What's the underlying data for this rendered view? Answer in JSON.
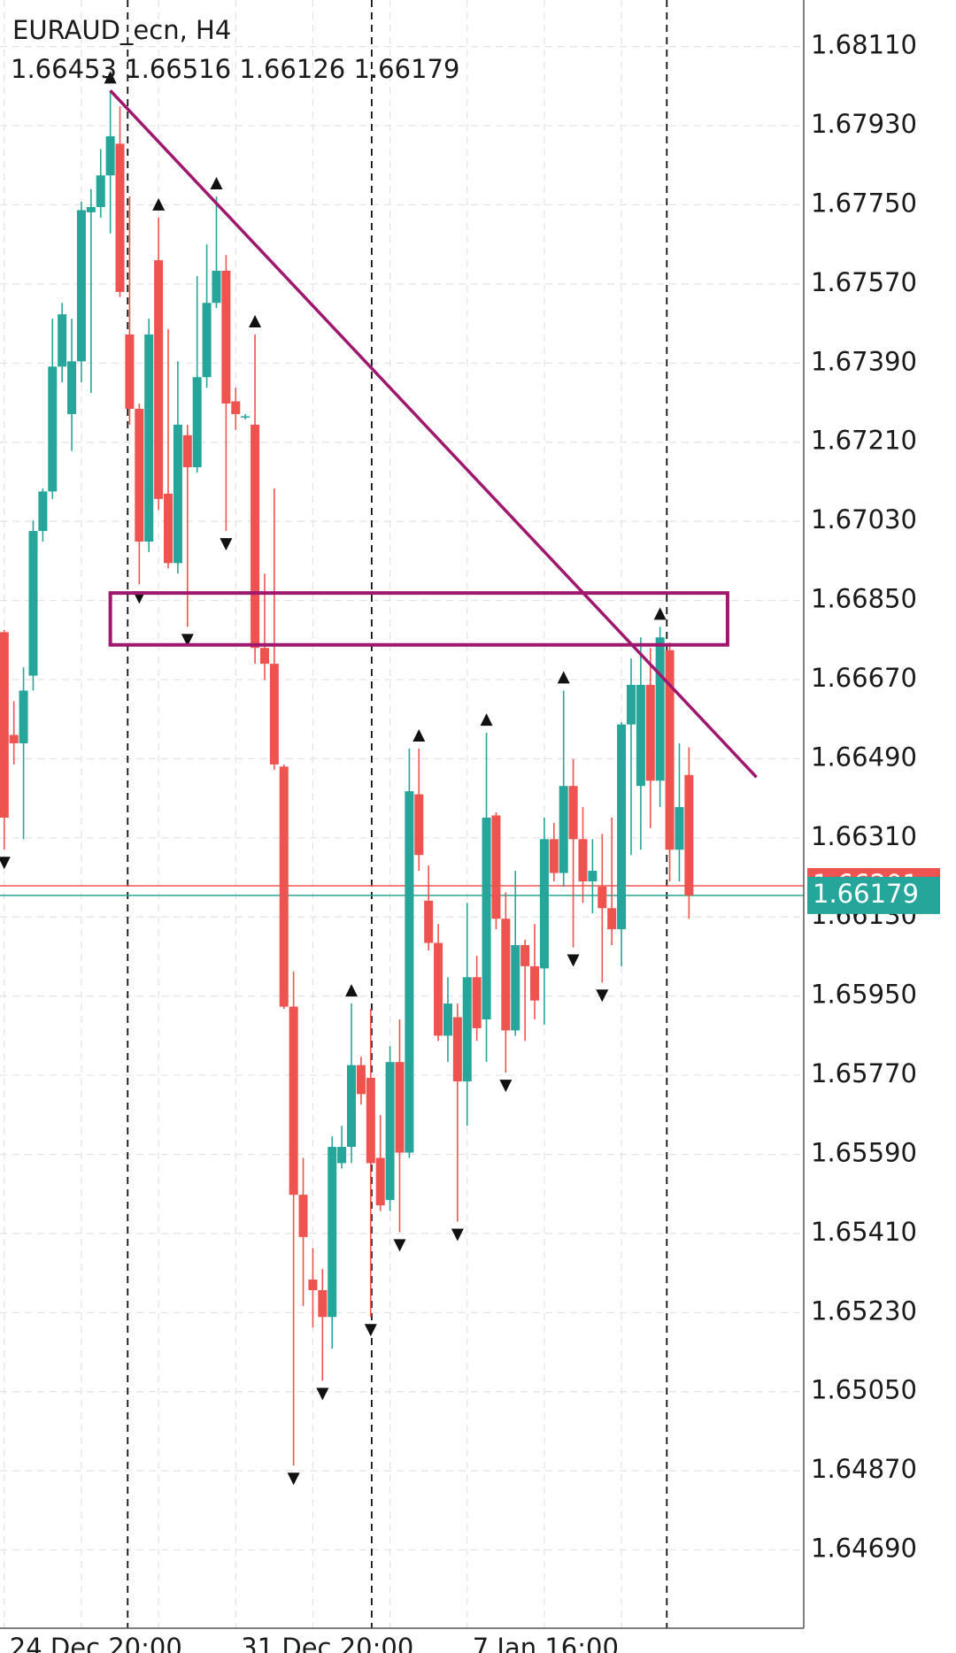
{
  "chart_data": {
    "type": "candlestick",
    "title": "EURAUD_ecn, H4",
    "categories": [
      "24 Dec 20:00",
      null,
      null,
      null,
      null,
      null,
      null,
      null,
      null,
      null,
      null,
      null,
      null,
      null,
      null,
      null,
      null,
      null,
      null,
      null,
      null,
      null,
      null,
      null,
      "31 Dec 20:00",
      null,
      null,
      null,
      null,
      null,
      null,
      null,
      null,
      null,
      null,
      null,
      null,
      null,
      null,
      null,
      null,
      null,
      null,
      null,
      null,
      null,
      null,
      null,
      "7 Jan 16:00",
      null,
      null,
      null,
      null,
      null,
      null,
      null,
      null,
      null,
      null,
      null,
      null,
      null,
      null,
      null,
      null,
      null,
      null,
      null,
      null,
      null,
      null,
      null
    ],
    "open": [
      1.66778,
      1.66544,
      1.66525,
      1.66679,
      1.67008,
      1.67098,
      1.67382,
      1.67274,
      1.67394,
      1.67733,
      1.67745,
      1.67817,
      1.67889,
      1.67455,
      1.67286,
      1.66984,
      1.67624,
      1.67093,
      1.66935,
      1.67226,
      1.67153,
      1.67358,
      1.67527,
      1.676,
      1.67303,
      1.67269,
      1.6725,
      1.66742,
      1.66706,
      1.66472,
      1.65926,
      1.65498,
      1.65305,
      1.65281,
      1.6522,
      1.6557,
      1.65607,
      1.65793,
      1.65764,
      1.65582,
      1.65486,
      1.658,
      1.65594,
      1.66409,
      1.66167,
      1.66071,
      1.6586,
      1.65902,
      1.65756,
      1.65993,
      1.65897,
      1.66361,
      1.66126,
      1.65872,
      1.66066,
      1.66018,
      1.66013,
      1.66307,
      1.6623,
      1.66428,
      1.66307,
      1.66211,
      1.66199,
      1.6615,
      1.66102,
      1.66568,
      1.66428,
      1.66658,
      1.6644,
      1.66737,
      1.66283,
      1.66453
    ],
    "high": [
      1.66783,
      1.66621,
      1.66698,
      1.67032,
      1.67105,
      1.67491,
      1.67527,
      1.67491,
      1.67757,
      1.67786,
      1.67877,
      1.6801,
      1.67974,
      1.67769,
      1.67298,
      1.67491,
      1.67721,
      1.67467,
      1.67394,
      1.6725,
      1.67588,
      1.6766,
      1.67769,
      1.67636,
      1.67334,
      1.67274,
      1.67455,
      1.66911,
      1.67105,
      1.66477,
      1.66006,
      1.65582,
      1.65377,
      1.65329,
      1.65631,
      1.65655,
      1.65933,
      1.65812,
      1.65921,
      1.65679,
      1.65836,
      1.65897,
      1.66513,
      1.66513,
      1.66247,
      1.66114,
      1.65993,
      1.65933,
      1.66162,
      1.66042,
      1.66549,
      1.66368,
      1.66186,
      1.66235,
      1.66078,
      1.66114,
      1.66356,
      1.66344,
      1.66645,
      1.66489,
      1.6638,
      1.66307,
      1.66319,
      1.66356,
      1.66573,
      1.66718,
      1.66766,
      1.66742,
      1.6679,
      1.66754,
      1.66525,
      1.66516
    ],
    "low": [
      1.66283,
      1.66477,
      1.66307,
      1.66645,
      1.66984,
      1.67081,
      1.67346,
      1.6719,
      1.67346,
      1.67322,
      1.67721,
      1.67685,
      1.6754,
      1.6725,
      1.66887,
      1.6696,
      1.67056,
      1.66923,
      1.66911,
      1.6679,
      1.67141,
      1.67334,
      1.67515,
      1.67008,
      1.67238,
      1.67262,
      1.66706,
      1.66669,
      1.66465,
      1.65921,
      1.64882,
      1.65245,
      1.65196,
      1.65075,
      1.65148,
      1.65558,
      1.6557,
      1.65703,
      1.6522,
      1.65461,
      1.65461,
      1.65413,
      1.65582,
      1.66235,
      1.66054,
      1.65848,
      1.658,
      1.65437,
      1.65655,
      1.65848,
      1.658,
      1.66102,
      1.65776,
      1.6586,
      1.65848,
      1.65897,
      1.65885,
      1.66211,
      1.66199,
      1.66061,
      1.66162,
      1.66138,
      1.65981,
      1.66066,
      1.66018,
      1.66271,
      1.66283,
      1.66332,
      1.6638,
      1.66211,
      1.66211,
      1.66126
    ],
    "close": [
      1.66356,
      1.66525,
      1.66645,
      1.67008,
      1.67098,
      1.67382,
      1.67501,
      1.67394,
      1.67738,
      1.67745,
      1.67817,
      1.67906,
      1.67552,
      1.67286,
      1.66984,
      1.67455,
      1.67081,
      1.66935,
      1.6725,
      1.67153,
      1.67358,
      1.67527,
      1.676,
      1.67298,
      1.67274,
      1.67269,
      1.66742,
      1.66706,
      1.66477,
      1.65926,
      1.65498,
      1.65402,
      1.65281,
      1.6522,
      1.65607,
      1.65607,
      1.65793,
      1.65727,
      1.6557,
      1.65474,
      1.658,
      1.65594,
      1.66416,
      1.66271,
      1.66071,
      1.6586,
      1.65933,
      1.65756,
      1.65993,
      1.65877,
      1.66356,
      1.66126,
      1.65872,
      1.66066,
      1.66018,
      1.6594,
      1.66307,
      1.6623,
      1.66428,
      1.66307,
      1.66211,
      1.66235,
      1.6615,
      1.66102,
      1.66568,
      1.66658,
      1.66658,
      1.6644,
      1.66766,
      1.66283,
      1.6638,
      1.66179
    ],
    "up_color": "#26a69a",
    "down_color": "#ef5350",
    "fractals_up": [
      11,
      16,
      22,
      26,
      36,
      43,
      50,
      58,
      68
    ],
    "fractals_down": [
      0,
      14,
      19,
      23,
      30,
      33,
      38,
      41,
      47,
      52,
      59,
      62
    ],
    "ylim": [
      1.64512,
      1.68216
    ],
    "xlim": [
      -0.44,
      82.9
    ],
    "yticks": [
      {
        "value": 1.6811,
        "label": "1.68110"
      },
      {
        "value": 1.6793,
        "label": "1.67930"
      },
      {
        "value": 1.6775,
        "label": "1.67750"
      },
      {
        "value": 1.6757,
        "label": "1.67570"
      },
      {
        "value": 1.6739,
        "label": "1.67390"
      },
      {
        "value": 1.6721,
        "label": "1.67210"
      },
      {
        "value": 1.6703,
        "label": "1.67030"
      },
      {
        "value": 1.6685,
        "label": "1.66850"
      },
      {
        "value": 1.6667,
        "label": "1.66670"
      },
      {
        "value": 1.6649,
        "label": "1.66490"
      },
      {
        "value": 1.6631,
        "label": "1.66310"
      },
      {
        "value": 1.6613,
        "label": "1.66130"
      },
      {
        "value": 1.6595,
        "label": "1.65950"
      },
      {
        "value": 1.6577,
        "label": "1.65770"
      },
      {
        "value": 1.6559,
        "label": "1.65590"
      },
      {
        "value": 1.6541,
        "label": "1.65410"
      },
      {
        "value": 1.6523,
        "label": "1.65230"
      },
      {
        "value": 1.6505,
        "label": "1.65050"
      },
      {
        "value": 1.6487,
        "label": "1.64870"
      },
      {
        "value": 1.6469,
        "label": "1.64690"
      }
    ],
    "grid": true,
    "xgrid_every": 8,
    "separators": [
      12.8,
      38.1,
      68.7
    ],
    "trendline": {
      "x": [
        11,
        78
      ],
      "y": [
        1.6801,
        1.66448
      ],
      "color": "#a0176e"
    },
    "zone": {
      "x": [
        11,
        75
      ],
      "y": [
        1.66749,
        1.66867
      ],
      "color": "#a0176e"
    },
    "bid": 1.66179,
    "ask": 1.66201
  }
}
